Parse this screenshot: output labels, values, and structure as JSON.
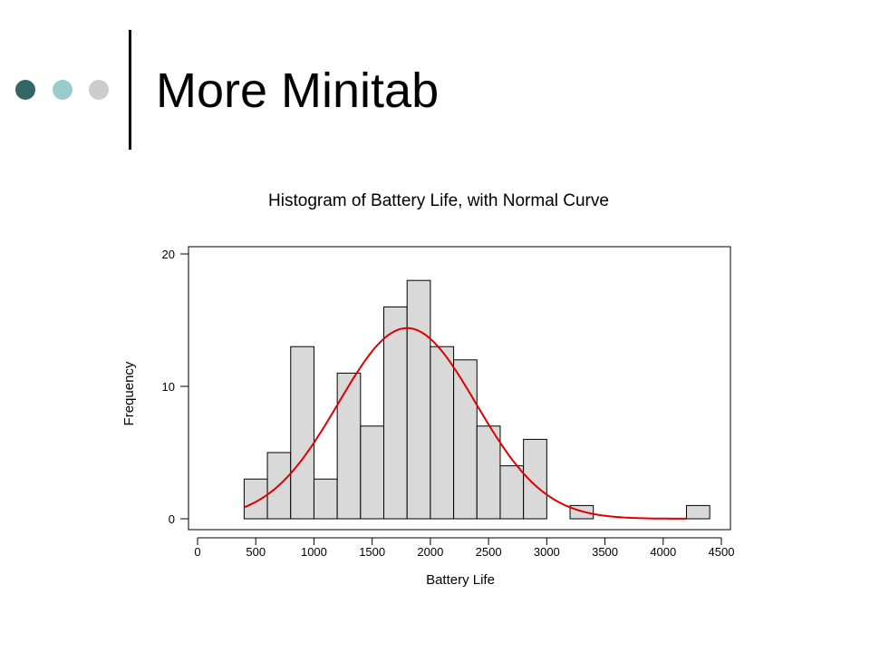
{
  "slide": {
    "title": "More Minitab",
    "bullet_colors": [
      "#336666",
      "#99cccc",
      "#cccccc"
    ]
  },
  "chart_data": {
    "type": "bar",
    "title": "Histogram of Battery Life, with Normal Curve",
    "xlabel": "Battery Life",
    "ylabel": "Frequency",
    "xlim": [
      0,
      4500
    ],
    "ylim": [
      0,
      20
    ],
    "x_ticks": [
      0,
      500,
      1000,
      1500,
      2000,
      2500,
      3000,
      3500,
      4000,
      4500
    ],
    "y_ticks": [
      0,
      10,
      20
    ],
    "bin_width": 200,
    "bins": [
      {
        "center": 500,
        "count": 3
      },
      {
        "center": 700,
        "count": 5
      },
      {
        "center": 900,
        "count": 13
      },
      {
        "center": 1100,
        "count": 3
      },
      {
        "center": 1300,
        "count": 11
      },
      {
        "center": 1500,
        "count": 7
      },
      {
        "center": 1700,
        "count": 16
      },
      {
        "center": 1900,
        "count": 18
      },
      {
        "center": 2100,
        "count": 13
      },
      {
        "center": 2300,
        "count": 12
      },
      {
        "center": 2500,
        "count": 7
      },
      {
        "center": 2700,
        "count": 4
      },
      {
        "center": 2900,
        "count": 6
      },
      {
        "center": 3300,
        "count": 1
      },
      {
        "center": 4300,
        "count": 1
      }
    ],
    "normal_curve": {
      "mean": 1800,
      "sd": 590,
      "peak": 14.4,
      "from": 400,
      "to": 4200
    },
    "bar_fill": "#d9d9d9",
    "bar_stroke": "#000000",
    "curve_color": "#dd0000"
  }
}
